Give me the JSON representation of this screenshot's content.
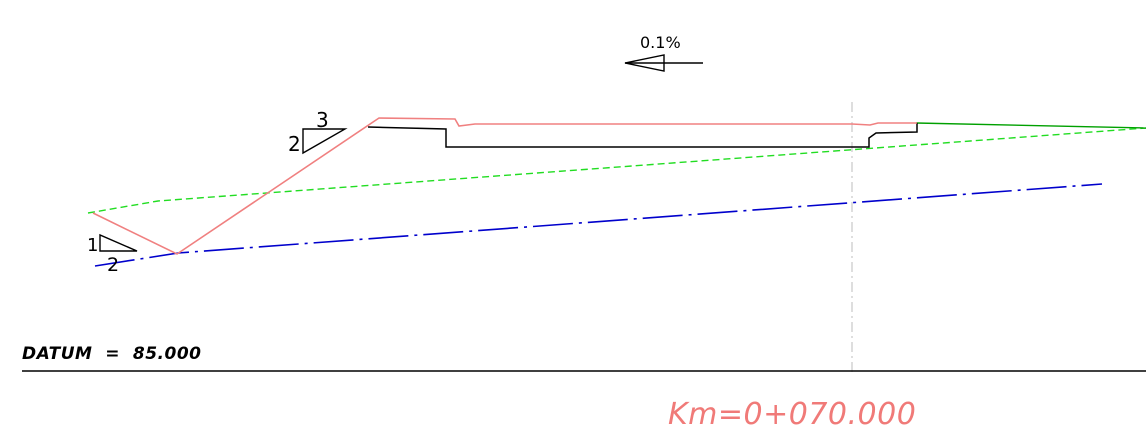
{
  "colors": {
    "design_surface": "#f08080",
    "pavement": "#000000",
    "existing_ground": "#00a000",
    "existing_ground_dashed": "#22dd22",
    "subgrade": "#0000cc",
    "centerline": "#b0b0b0",
    "text": "#000000",
    "chainage": "#f07a78"
  },
  "slope_indicator": {
    "grade_label": "0.1%",
    "arrow_direction": "left"
  },
  "slope_ratios": {
    "cut": {
      "vertical": "2",
      "horizontal": "3"
    },
    "fill": {
      "vertical": "1",
      "horizontal": "2"
    }
  },
  "datum": {
    "label": "DATUM  =  85.000"
  },
  "chainage": {
    "label": "Km=0+070.000"
  }
}
